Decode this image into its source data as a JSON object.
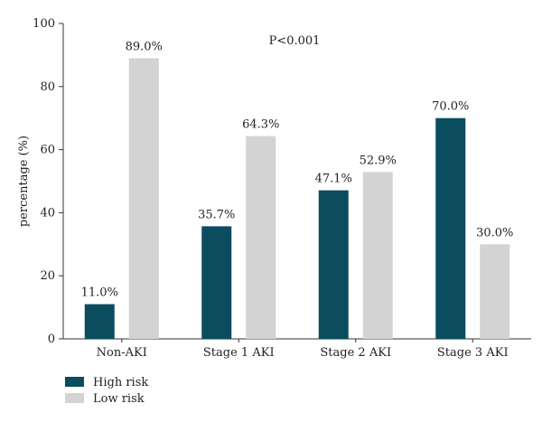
{
  "chart_data": {
    "type": "bar",
    "categories": [
      "Non-AKI",
      "Stage 1 AKI",
      "Stage 2 AKI",
      "Stage 3 AKI"
    ],
    "series": [
      {
        "name": "High risk",
        "values": [
          11.0,
          35.7,
          47.1,
          70.0
        ],
        "labels": [
          "11.0%",
          "35.7%",
          "47.1%",
          "70.0%"
        ],
        "color": "#0b4d5e"
      },
      {
        "name": "Low risk",
        "values": [
          89.0,
          64.3,
          52.9,
          30.0
        ],
        "labels": [
          "89.0%",
          "64.3%",
          "52.9%",
          "30.0%"
        ],
        "color": "#d3d3d3"
      }
    ],
    "ylabel": "percentage (%)",
    "xlabel": "",
    "ylim": [
      0,
      100
    ],
    "yticks": [
      "0",
      "20",
      "40",
      "60",
      "80",
      "100"
    ],
    "annotation": "P<0.001",
    "grid": false,
    "legend_position": "bottom-left"
  }
}
